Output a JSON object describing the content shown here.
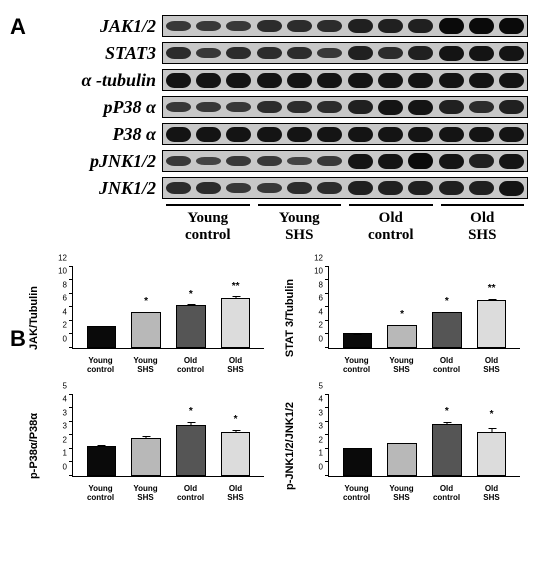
{
  "panelA": {
    "label": "A",
    "blots": [
      {
        "name": "JAK1/2",
        "intensities": [
          2,
          2,
          2,
          3,
          3,
          3,
          4,
          4,
          4,
          6,
          6,
          6
        ]
      },
      {
        "name": "STAT3",
        "intensities": [
          3,
          2,
          3,
          3,
          3,
          2,
          4,
          3,
          4,
          5,
          5,
          5
        ]
      },
      {
        "name": "α -tubulin",
        "intensities": [
          5,
          5,
          5,
          5,
          5,
          5,
          5,
          5,
          5,
          5,
          5,
          5
        ]
      },
      {
        "name": "pP38 α",
        "intensities": [
          2,
          2,
          2,
          3,
          3,
          3,
          4,
          5,
          5,
          4,
          3,
          4
        ]
      },
      {
        "name": "P38 α",
        "intensities": [
          5,
          5,
          5,
          5,
          5,
          5,
          5,
          5,
          5,
          5,
          5,
          5
        ]
      },
      {
        "name": "pJNK1/2",
        "intensities": [
          2,
          1,
          2,
          2,
          1,
          2,
          5,
          5,
          6,
          5,
          4,
          5
        ]
      },
      {
        "name": "JNK1/2",
        "intensities": [
          3,
          3,
          2,
          2,
          3,
          3,
          4,
          4,
          4,
          4,
          4,
          5
        ]
      }
    ],
    "groups": [
      "Young\ncontrol",
      "Young\nSHS",
      "Old\ncontrol",
      "Old\nSHS"
    ],
    "band_min_height_pct": 30,
    "band_scale_pct": 9,
    "strip_bg": "#c8c8c8",
    "band_color": "#111111"
  },
  "panelB": {
    "label": "B",
    "categories": [
      "Young\ncontrol",
      "Young\nSHS",
      "Old\ncontrol",
      "Old\nSHS"
    ],
    "bar_colors": [
      "#0a0a0a",
      "#b8b8b8",
      "#555555",
      "#dcdcdc"
    ],
    "bar_border": "#000000",
    "ytick_count": 6,
    "charts": [
      {
        "ylabel": "JAK/Tubulin",
        "ymax": 12,
        "values": [
          3.2,
          5.2,
          6.3,
          7.4
        ],
        "errors": [
          0.4,
          0.5,
          0.5,
          0.6
        ],
        "sig": [
          "",
          "*",
          "*",
          "**"
        ]
      },
      {
        "ylabel": "STAT 3/Tubulin",
        "ymax": 12,
        "values": [
          2.1,
          3.4,
          5.2,
          7.0
        ],
        "errors": [
          0.3,
          0.4,
          0.5,
          0.6
        ],
        "sig": [
          "",
          "*",
          "*",
          "**"
        ]
      },
      {
        "ylabel": "p-P38α/P38α",
        "ymax": 5,
        "values": [
          1.8,
          2.3,
          3.1,
          2.7
        ],
        "errors": [
          0.5,
          0.5,
          0.4,
          0.3
        ],
        "sig": [
          "",
          "",
          "*",
          "*"
        ]
      },
      {
        "ylabel": "p-JNK1/2/JNK1/2",
        "ymax": 5,
        "values": [
          1.7,
          2.0,
          3.2,
          2.7
        ],
        "errors": [
          0.2,
          0.2,
          0.3,
          0.6
        ],
        "sig": [
          "",
          "",
          "*",
          "*"
        ]
      }
    ]
  }
}
